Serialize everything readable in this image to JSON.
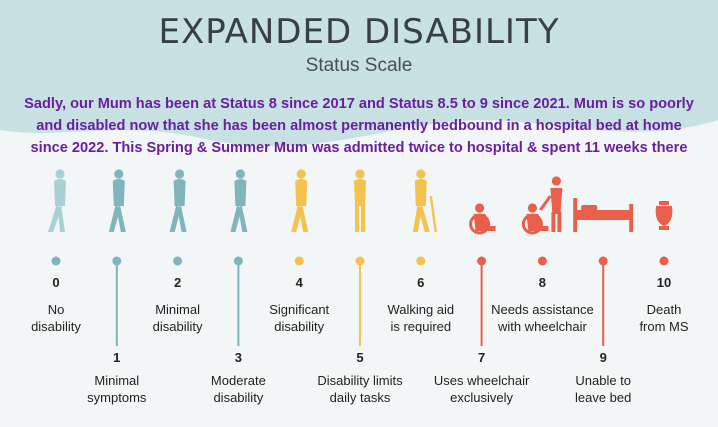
{
  "title": "EXPANDED DISABILITY",
  "subtitle": "Status Scale",
  "note_lines": [
    "Sadly, our Mum has been at Status 8 since 2017 and Status 8.5 to 9 since 2021. Mum is  so poorly",
    "and disabled now that she has been almost permanently bedbound in a hospital bed at home",
    "since 2022. This Spring & Summer Mum was admitted twice  to hospital & spent 11 weeks there"
  ],
  "colors": {
    "banner": "#c8e1e2",
    "teal": "#7fb6bd",
    "yellow": "#f4c24f",
    "red": "#e8604c",
    "note": "#6a1fa0"
  },
  "levels": [
    {
      "num": "0",
      "label": [
        "No",
        "disability"
      ],
      "pos": "top",
      "color_key": "teal",
      "figure": "person-running-icon"
    },
    {
      "num": "1",
      "label": [
        "Minimal",
        "symptoms"
      ],
      "pos": "bottom",
      "color_key": "teal",
      "figure": "person-walking-fast-icon"
    },
    {
      "num": "2",
      "label": [
        "Minimal",
        "disability"
      ],
      "pos": "top",
      "color_key": "teal",
      "figure": "person-walking-icon"
    },
    {
      "num": "3",
      "label": [
        "Moderate",
        "disability"
      ],
      "pos": "bottom",
      "color_key": "teal",
      "figure": "person-walking-slow-icon"
    },
    {
      "num": "4",
      "label": [
        "Significant",
        "disability"
      ],
      "pos": "top",
      "color_key": "yellow",
      "figure": "person-walking-icon"
    },
    {
      "num": "5",
      "label": [
        "Disability limits",
        "daily tasks"
      ],
      "pos": "bottom",
      "color_key": "yellow",
      "figure": "person-standing-icon"
    },
    {
      "num": "6",
      "label": [
        "Walking aid",
        "is required"
      ],
      "pos": "top",
      "color_key": "yellow",
      "figure": "person-with-cane-icon"
    },
    {
      "num": "7",
      "label": [
        "Uses wheelchair",
        "exclusively"
      ],
      "pos": "bottom",
      "color_key": "red",
      "figure": "person-in-wheelchair-icon"
    },
    {
      "num": "8",
      "label": [
        "Needs assistance",
        "with wheelchair"
      ],
      "pos": "top",
      "color_key": "red",
      "figure": "assisted-wheelchair-icon"
    },
    {
      "num": "9",
      "label": [
        "Unable to",
        "leave bed"
      ],
      "pos": "bottom",
      "color_key": "red",
      "figure": "hospital-bed-icon"
    },
    {
      "num": "10",
      "label": [
        "Death",
        "from MS"
      ],
      "pos": "top",
      "color_key": "red",
      "figure": "urn-icon"
    }
  ]
}
